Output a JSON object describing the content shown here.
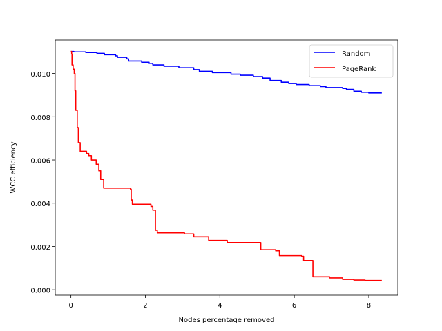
{
  "chart_data": {
    "type": "line",
    "title": "",
    "xlabel": "Nodes percentage removed",
    "ylabel": "WCC efficiency",
    "xlim": [
      -0.42,
      8.78
    ],
    "ylim": [
      -0.00025,
      0.01155
    ],
    "x_ticks": [
      0,
      2,
      4,
      6,
      8
    ],
    "y_ticks": [
      0.0,
      0.002,
      0.004,
      0.006,
      0.008,
      0.01
    ],
    "y_tick_labels": [
      "0.000",
      "0.002",
      "0.004",
      "0.006",
      "0.008",
      "0.010"
    ],
    "x_tick_labels": [
      "0",
      "2",
      "4",
      "6",
      "8"
    ],
    "grid": false,
    "legend_position": "top-right",
    "series": [
      {
        "name": "Random",
        "color": "#0000ff",
        "step": true,
        "points": [
          [
            0.0,
            0.01102
          ],
          [
            0.08,
            0.011
          ],
          [
            0.4,
            0.01097
          ],
          [
            0.7,
            0.01093
          ],
          [
            0.9,
            0.01087
          ],
          [
            1.2,
            0.01082
          ],
          [
            1.25,
            0.01075
          ],
          [
            1.5,
            0.01068
          ],
          [
            1.55,
            0.01058
          ],
          [
            1.9,
            0.01052
          ],
          [
            2.1,
            0.01047
          ],
          [
            2.2,
            0.0104
          ],
          [
            2.5,
            0.01034
          ],
          [
            2.9,
            0.01027
          ],
          [
            3.3,
            0.01018
          ],
          [
            3.45,
            0.0101
          ],
          [
            3.8,
            0.01004
          ],
          [
            4.3,
            0.00997
          ],
          [
            4.55,
            0.00992
          ],
          [
            4.9,
            0.00986
          ],
          [
            5.15,
            0.00979
          ],
          [
            5.35,
            0.00968
          ],
          [
            5.65,
            0.0096
          ],
          [
            5.85,
            0.00954
          ],
          [
            6.05,
            0.00949
          ],
          [
            6.4,
            0.00944
          ],
          [
            6.7,
            0.0094
          ],
          [
            6.85,
            0.00935
          ],
          [
            7.3,
            0.00931
          ],
          [
            7.4,
            0.00927
          ],
          [
            7.6,
            0.00918
          ],
          [
            7.8,
            0.00913
          ],
          [
            8.0,
            0.0091
          ],
          [
            8.35,
            0.0091
          ]
        ]
      },
      {
        "name": "PageRank",
        "color": "#ff0000",
        "step": true,
        "points": [
          [
            0.0,
            0.01102
          ],
          [
            0.02,
            0.0109
          ],
          [
            0.03,
            0.0104
          ],
          [
            0.06,
            0.0102
          ],
          [
            0.09,
            0.01
          ],
          [
            0.11,
            0.0092
          ],
          [
            0.13,
            0.0083
          ],
          [
            0.17,
            0.0075
          ],
          [
            0.2,
            0.0068
          ],
          [
            0.25,
            0.0064
          ],
          [
            0.42,
            0.0063
          ],
          [
            0.48,
            0.0062
          ],
          [
            0.55,
            0.006
          ],
          [
            0.68,
            0.0058
          ],
          [
            0.75,
            0.0055
          ],
          [
            0.8,
            0.0051
          ],
          [
            0.88,
            0.0047
          ],
          [
            1.6,
            0.00465
          ],
          [
            1.62,
            0.00415
          ],
          [
            1.65,
            0.00395
          ],
          [
            2.15,
            0.00385
          ],
          [
            2.2,
            0.00368
          ],
          [
            2.27,
            0.00275
          ],
          [
            2.32,
            0.00263
          ],
          [
            3.05,
            0.00258
          ],
          [
            3.3,
            0.00245
          ],
          [
            3.7,
            0.00228
          ],
          [
            4.2,
            0.00218
          ],
          [
            5.1,
            0.00185
          ],
          [
            5.5,
            0.0018
          ],
          [
            5.6,
            0.00158
          ],
          [
            6.2,
            0.00155
          ],
          [
            6.25,
            0.00135
          ],
          [
            6.5,
            0.0006
          ],
          [
            6.95,
            0.00055
          ],
          [
            7.3,
            0.00048
          ],
          [
            7.6,
            0.00045
          ],
          [
            7.9,
            0.00043
          ],
          [
            8.35,
            0.00043
          ]
        ]
      }
    ]
  }
}
